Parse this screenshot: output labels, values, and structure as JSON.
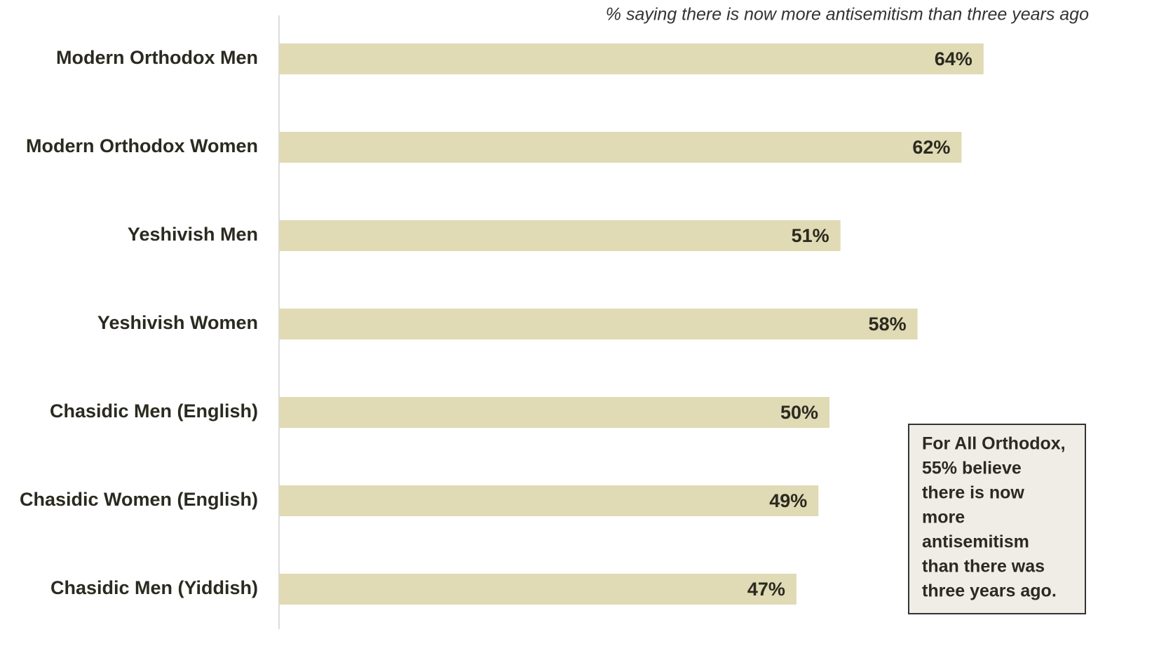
{
  "chart_data": {
    "type": "bar",
    "orientation": "horizontal",
    "subtitle": "% saying there is now more antisemitism than three years ago",
    "categories": [
      "Modern Orthodox Men",
      "Modern Orthodox Women",
      "Yeshivish Men",
      "Yeshivish Women",
      "Chasidic Men (English)",
      "Chasidic Women (English)",
      "Chasidic Men (Yiddish)"
    ],
    "values": [
      64,
      62,
      51,
      58,
      50,
      49,
      47
    ],
    "value_labels": [
      "64%",
      "62%",
      "51%",
      "58%",
      "50%",
      "49%",
      "47%"
    ],
    "color": "#e0dab5",
    "xlim": [
      0,
      80
    ],
    "annotation": [
      "For All Orthodox,",
      "55% believe",
      "there is now",
      "more",
      "antisemitism",
      "than there was",
      "three years ago."
    ]
  }
}
